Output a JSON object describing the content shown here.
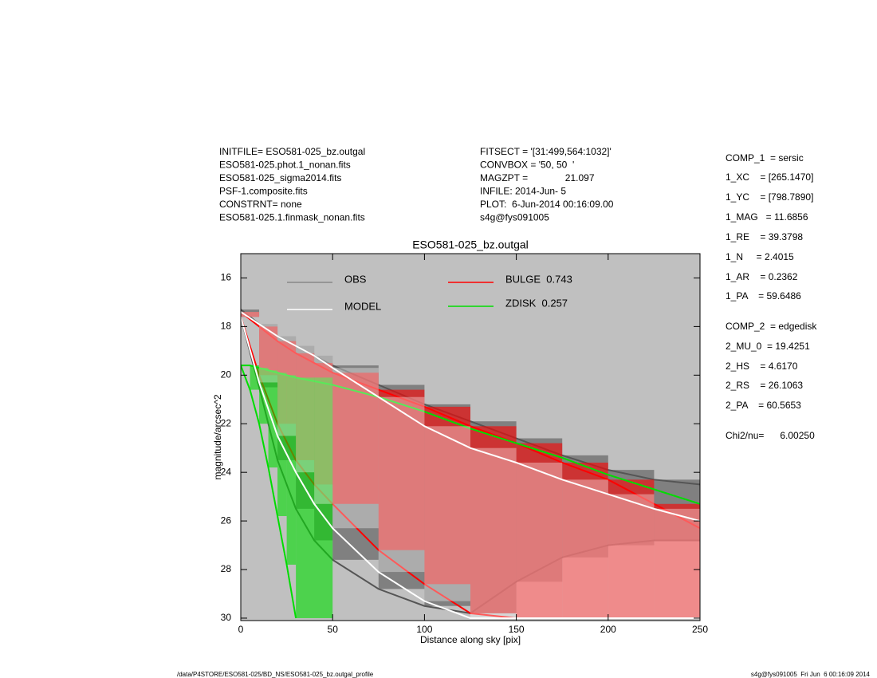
{
  "header": {
    "left": [
      "INITFILE= ESO581-025_bz.outgal",
      "ESO581-025.phot.1_nonan.fits",
      "ESO581-025_sigma2014.fits",
      "PSF-1.composite.fits",
      "CONSTRNT= none",
      "ESO581-025.1.finmask_nonan.fits"
    ],
    "middle": [
      "FITSECT = '[31:499,564:1032]'",
      "CONVBOX = '50, 50  '",
      "MAGZPT =              21.097",
      "INFILE: 2014-Jun- 5",
      "PLOT:  6-Jun-2014 00:16:09.00",
      "s4g@fys091005"
    ]
  },
  "params": [
    "COMP_1  = sersic",
    "1_XC    = [265.1470]",
    "1_YC    = [798.7890]",
    "1_MAG   = 11.6856",
    "1_RE    = 39.3798",
    "1_N     = 2.4015",
    "1_AR    = 0.2362",
    "1_PA    = 59.6486",
    "COMP_2  = edgedisk",
    "2_MU_0  = 19.4251",
    "2_HS    = 4.6170",
    "2_RS    = 26.1063",
    "2_PA    = 60.5653",
    "Chi2/nu=      6.00250"
  ],
  "footer": {
    "left": "/data/P4STORE/ESO581-025/BD_NS/ESO581-025_bz.outgal_profile",
    "right": "s4g@fys091005  Fri Jun  6 00:16:09 2014"
  },
  "chart_data": {
    "type": "band",
    "title": "ESO581-025_bz.outgal",
    "x_label": "Distance along sky [pix]",
    "y_label": "magnitude/arcsec^2",
    "xlim": [
      0,
      250
    ],
    "xticks": [
      0,
      50,
      100,
      150,
      200,
      250
    ],
    "ylim": [
      15,
      30.1
    ],
    "yticks": [
      16,
      18,
      20,
      22,
      24,
      26,
      28,
      30
    ],
    "y_inverted": true,
    "series": [
      {
        "name": "OBS",
        "color": "#555555",
        "x": [
          0,
          10,
          20,
          30,
          40,
          50,
          75,
          100,
          125,
          150,
          175,
          200,
          225,
          250
        ],
        "values": [
          17.3,
          17.9,
          18.4,
          18.8,
          19.2,
          19.6,
          20.4,
          21.2,
          21.9,
          22.6,
          23.3,
          23.9,
          24.3,
          24.5
        ],
        "low": [
          17.6,
          20.5,
          23.5,
          25.5,
          26.8,
          27.6,
          28.8,
          29.5,
          29.8,
          28.5,
          27.5,
          27,
          26.8,
          26.8
        ]
      },
      {
        "name": "BULGE  0.743",
        "color": "#ff0000",
        "x": [
          0,
          10,
          20,
          30,
          40,
          50,
          75,
          100,
          125,
          150,
          175,
          200,
          225,
          250
        ],
        "values": [
          17.4,
          18.0,
          18.6,
          19.1,
          19.5,
          19.9,
          20.6,
          21.3,
          22.1,
          22.8,
          23.6,
          24.3,
          25.3,
          26.3
        ],
        "low": [
          17.6,
          20.0,
          22.0,
          23.5,
          24.5,
          25.3,
          27.2,
          28.6,
          29.8,
          30,
          30,
          30,
          30,
          30
        ]
      },
      {
        "name": "ZDISK  0.257",
        "color": "#00dd00",
        "x": [
          0,
          5,
          10,
          15,
          20,
          25,
          30,
          50,
          75,
          100,
          125,
          150,
          175,
          200,
          225,
          250
        ],
        "values": [
          19.6,
          19.6,
          19.7,
          19.8,
          19.9,
          20.0,
          20.1,
          20.4,
          20.9,
          21.5,
          22.2,
          22.8,
          23.4,
          24.1,
          24.7,
          25.3
        ],
        "low": [
          19.6,
          20.6,
          22.0,
          23.8,
          25.8,
          27.8,
          30.0,
          null,
          null,
          null,
          null,
          null,
          null,
          null,
          null,
          null
        ]
      },
      {
        "name": "MODEL",
        "color": "#ffffff",
        "x": [
          0,
          10,
          20,
          30,
          40,
          50,
          75,
          100,
          125,
          150,
          175,
          200,
          225,
          250
        ],
        "values": [
          17.4,
          17.9,
          18.4,
          18.8,
          19.2,
          19.7,
          20.9,
          22.1,
          23.0,
          23.6,
          24.3,
          24.9,
          25.5,
          26.0
        ],
        "low": [
          17.6,
          20.3,
          22.5,
          24.0,
          25.3,
          26.3,
          28.1,
          29.3,
          30,
          30,
          30,
          30,
          30,
          30
        ]
      }
    ]
  }
}
